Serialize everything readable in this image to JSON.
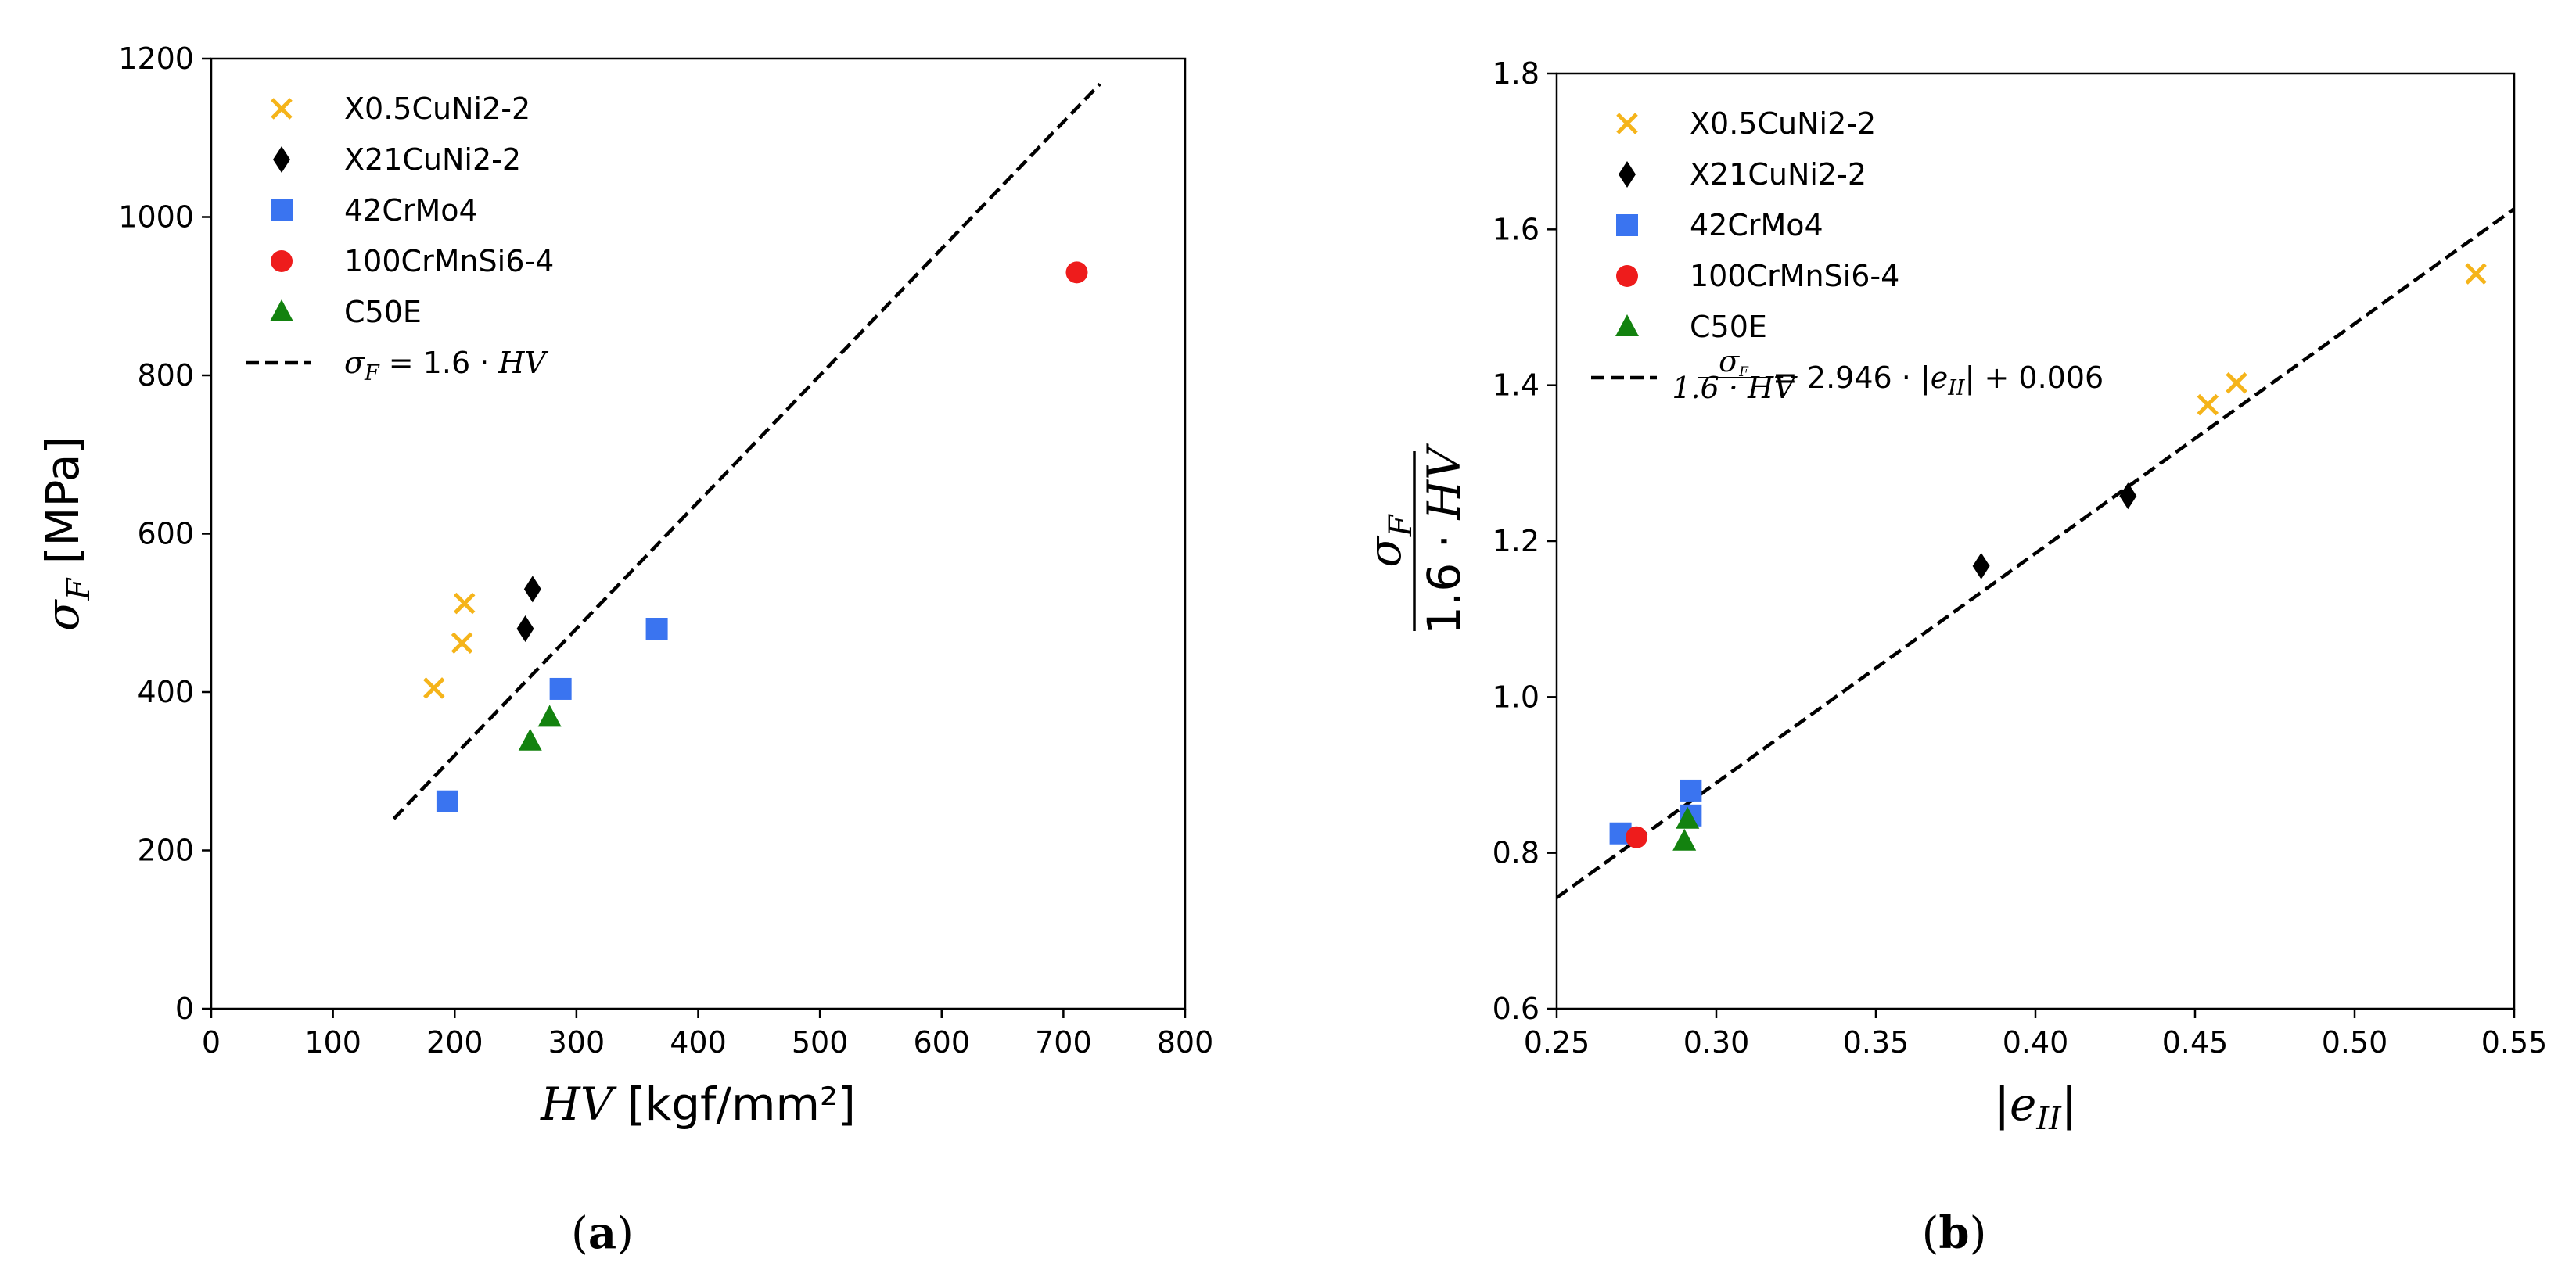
{
  "colors": {
    "X0.5CuNi2-2": "#f5b41a",
    "X21CuNi2-2": "#000000",
    "42CrMo4": "#3a74f0",
    "100CrMnSi6-4": "#ee1c1c",
    "C50E": "#13820f"
  },
  "chart_data": [
    {
      "type": "scatter",
      "caption_letter": "a",
      "xlabel": {
        "var": "HV",
        "unit": " [kgf/mm²]"
      },
      "ylabel": {
        "var": "σ",
        "sub": "F",
        "unit": " [MPa]"
      },
      "xlim": [
        0,
        800
      ],
      "ylim": [
        0,
        1200
      ],
      "xticks": [
        "0",
        "100",
        "200",
        "300",
        "400",
        "500",
        "600",
        "700",
        "800"
      ],
      "yticks": [
        "0",
        "200",
        "400",
        "600",
        "800",
        "1000",
        "1200"
      ],
      "series": [
        {
          "name": "X0.5CuNi2-2",
          "marker": "x",
          "points": [
            [
              183,
              405
            ],
            [
              206,
              462
            ],
            [
              208,
              512
            ]
          ]
        },
        {
          "name": "X21CuNi2-2",
          "marker": "diamond",
          "points": [
            [
              258,
              480
            ],
            [
              264,
              530
            ]
          ]
        },
        {
          "name": "42CrMo4",
          "marker": "square",
          "points": [
            [
              194,
              262
            ],
            [
              287,
              404
            ],
            [
              366,
              480
            ]
          ]
        },
        {
          "name": "100CrMnSi6-4",
          "marker": "circle",
          "points": [
            [
              711,
              930
            ]
          ]
        },
        {
          "name": "C50E",
          "marker": "triangle",
          "points": [
            [
              262,
              338
            ],
            [
              278,
              368
            ]
          ]
        }
      ],
      "fit_line": {
        "label_var": "σ",
        "label_sub": "F",
        "label_rest": " = 1.6 · ",
        "label_var2": "HV",
        "x": [
          150,
          730
        ],
        "y": [
          240,
          1168
        ]
      }
    },
    {
      "type": "scatter",
      "caption_letter": "b",
      "xlabel": {
        "open": "|",
        "var": "e",
        "sub": "II",
        "close": "|"
      },
      "ylabel": {
        "num": "σ",
        "num_sub": "F",
        "den_num": "1.6 · ",
        "den_var": "HV"
      },
      "xlim": [
        0.25,
        0.55
      ],
      "ylim": [
        0.6,
        1.8
      ],
      "xticks": [
        "0.25",
        "0.30",
        "0.35",
        "0.40",
        "0.45",
        "0.50",
        "0.55"
      ],
      "yticks": [
        "0.6",
        "0.8",
        "1.0",
        "1.2",
        "1.4",
        "1.6",
        "1.8"
      ],
      "series": [
        {
          "name": "X0.5CuNi2-2",
          "marker": "x",
          "points": [
            [
              0.454,
              1.375
            ],
            [
              0.463,
              1.403
            ],
            [
              0.538,
              1.543
            ]
          ]
        },
        {
          "name": "X21CuNi2-2",
          "marker": "diamond",
          "points": [
            [
              0.383,
              1.168
            ],
            [
              0.429,
              1.258
            ]
          ]
        },
        {
          "name": "42CrMo4",
          "marker": "square",
          "points": [
            [
              0.27,
              0.825
            ],
            [
              0.292,
              0.88
            ],
            [
              0.292,
              0.848
            ]
          ]
        },
        {
          "name": "100CrMnSi6-4",
          "marker": "circle",
          "points": [
            [
              0.275,
              0.82
            ]
          ]
        },
        {
          "name": "C50E",
          "marker": "triangle",
          "points": [
            [
              0.29,
              0.815
            ],
            [
              0.291,
              0.843
            ]
          ]
        }
      ],
      "fit_line": {
        "label_frac_num": "σ",
        "label_frac_num_sub": "F",
        "label_frac_den": "1.6 · HV",
        "label_rest_a": " = 2.946 · |",
        "label_var": "e",
        "label_sub": "II",
        "label_rest_b": "| + 0.006",
        "x": [
          0.25,
          0.55
        ],
        "y": [
          0.7425,
          1.6263
        ]
      }
    }
  ]
}
